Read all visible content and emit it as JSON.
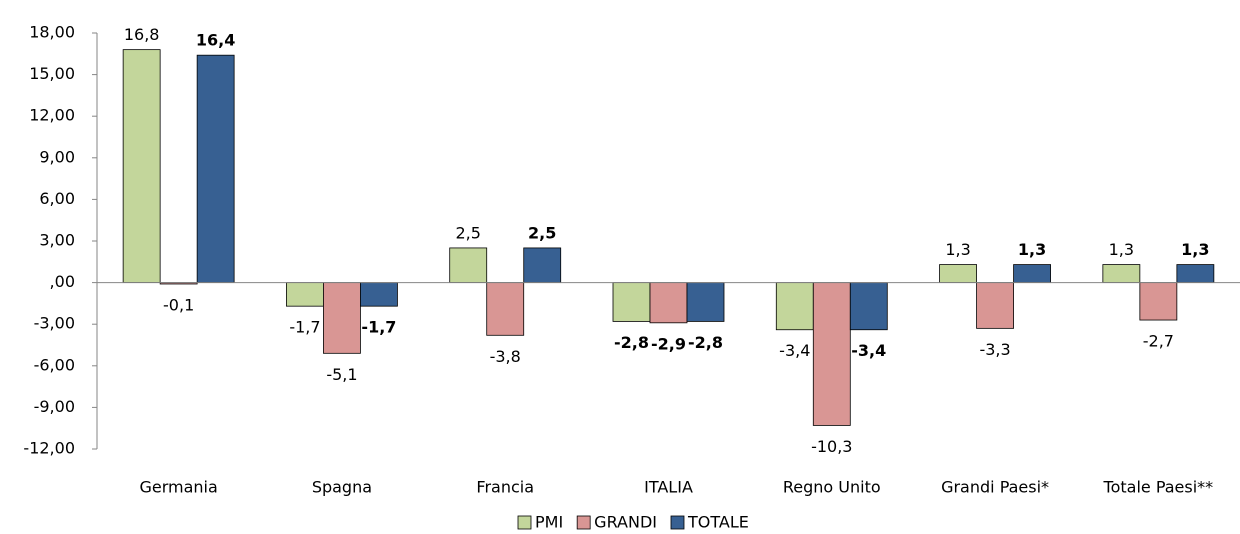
{
  "chart_data": {
    "type": "bar",
    "categories": [
      "Germania",
      "Spagna",
      "Francia",
      "ITALIA",
      "Regno Unito",
      "Grandi Paesi*",
      "Totale Paesi**"
    ],
    "series": [
      {
        "name": "PMI",
        "color": "#c3d69b",
        "values": [
          16.8,
          -1.7,
          2.5,
          -2.8,
          -3.4,
          1.3,
          1.3
        ],
        "value_labels": [
          "16,8",
          "-1,7",
          "2,5",
          "-2,8",
          "-3,4",
          "1,3",
          "1,3"
        ]
      },
      {
        "name": "GRANDI",
        "color": "#d99694",
        "values": [
          -0.1,
          -5.1,
          -3.8,
          -2.9,
          -10.3,
          -3.3,
          -2.7
        ],
        "value_labels": [
          "-0,1",
          "-5,1",
          "-3,8",
          "-2,9",
          "-10,3",
          "-3,3",
          "-2,7"
        ]
      },
      {
        "name": "TOTALE",
        "color": "#376092",
        "values": [
          16.4,
          -1.7,
          2.5,
          -2.8,
          -3.4,
          1.3,
          1.3
        ],
        "value_labels": [
          "16,4",
          "-1,7",
          "2,5",
          "-2,8",
          "-3,4",
          "1,3",
          "1,3"
        ]
      }
    ],
    "ylim": [
      -12,
      18
    ],
    "yticks": [
      {
        "value": -12,
        "label": "-12,00"
      },
      {
        "value": -9,
        "label": "-9,00"
      },
      {
        "value": -6,
        "label": "-6,00"
      },
      {
        "value": -3,
        "label": "-3,00"
      },
      {
        "value": 0,
        "label": ",00"
      },
      {
        "value": 3,
        "label": "3,00"
      },
      {
        "value": 6,
        "label": "6,00"
      },
      {
        "value": 9,
        "label": "9,00"
      },
      {
        "value": 12,
        "label": "12,00"
      },
      {
        "value": 15,
        "label": "15,00"
      },
      {
        "value": 18,
        "label": "18,00"
      }
    ],
    "grid": false,
    "legend": "bottom"
  }
}
